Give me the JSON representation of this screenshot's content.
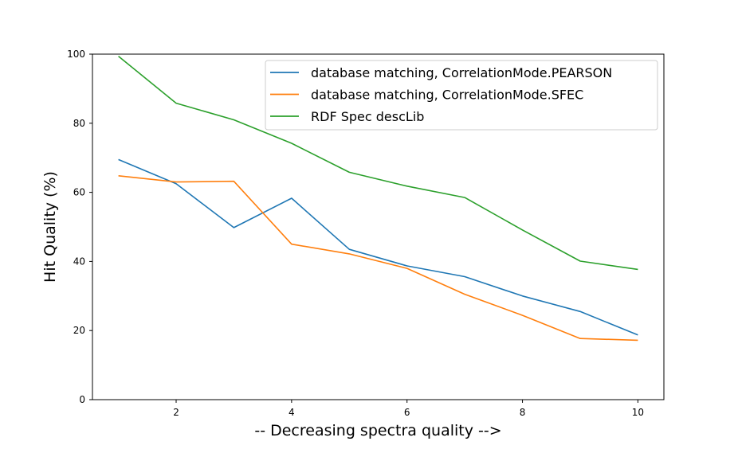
{
  "chart_data": {
    "type": "line",
    "title": "",
    "xlabel": "-- Decreasing spectra quality -->",
    "ylabel": "Hit Quality (%)",
    "xlim": [
      0.55,
      10.45
    ],
    "ylim": [
      0,
      100
    ],
    "xticks": [
      2,
      4,
      6,
      8,
      10
    ],
    "yticks": [
      0,
      20,
      40,
      60,
      80,
      100
    ],
    "x": [
      1,
      2,
      3,
      4,
      5,
      6,
      7,
      8,
      9,
      10
    ],
    "legend_position": "top-right",
    "series": [
      {
        "name": "database matching, CorrelationMode.PEARSON",
        "color": "#1f77b4",
        "values": [
          69.5,
          62.5,
          49.8,
          58.3,
          43.5,
          38.7,
          35.6,
          30.0,
          25.5,
          18.7
        ]
      },
      {
        "name": "database matching, CorrelationMode.SFEC",
        "color": "#ff7f0e",
        "values": [
          64.8,
          63.0,
          63.2,
          45.0,
          42.2,
          38.0,
          30.5,
          24.4,
          17.7,
          17.2
        ]
      },
      {
        "name": "RDF Spec descLib",
        "color": "#2ca02c",
        "values": [
          99.4,
          85.8,
          81.0,
          74.2,
          65.8,
          61.8,
          58.5,
          49.1,
          40.1,
          37.7
        ]
      }
    ]
  }
}
